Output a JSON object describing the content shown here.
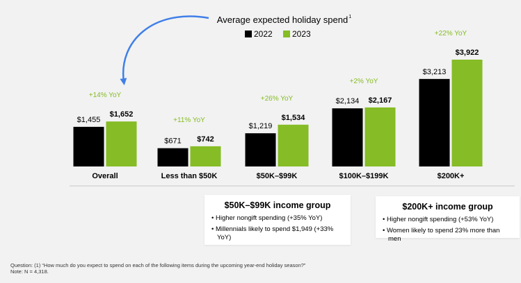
{
  "chart_data": {
    "type": "bar",
    "title": "Average expected holiday spend",
    "title_superscript": "1",
    "categories": [
      "Overall",
      "Less than $50K",
      "$50K–$99K",
      "$100K–$199K",
      "$200K+"
    ],
    "series": [
      {
        "name": "2022",
        "color": "#000000",
        "values": [
          1455,
          671,
          1219,
          2134,
          3213
        ],
        "labels": [
          "$1,455",
          "$671",
          "$1,219",
          "$2,134",
          "$3,213"
        ]
      },
      {
        "name": "2023",
        "color": "#86bc25",
        "values": [
          1652,
          742,
          1534,
          2167,
          3922
        ],
        "labels": [
          "$1,652",
          "$742",
          "$1,534",
          "$2,167",
          "$3,922"
        ]
      }
    ],
    "yoy_labels": [
      "+14% YoY",
      "+11% YoY",
      "+26% YoY",
      "+2% YoY",
      "+22% YoY"
    ],
    "ylim": [
      0,
      4000
    ],
    "legend": "top-center"
  },
  "callouts": [
    {
      "title": "$50K–$99K income group",
      "bullets": [
        "Higher nongift spending (+35% YoY)",
        "Millennials likely to spend $1,949 (+33% YoY)"
      ]
    },
    {
      "title": "$200K+ income group",
      "bullets": [
        "Higher nongift spending (+53% YoY)",
        "Women likely to spend 23% more than men"
      ]
    }
  ],
  "footnote": {
    "question": "Question: (1) “How much do you expect to spend on each of the following items during the upcoming year-end holiday season?”",
    "note": "Note: N = 4,318."
  }
}
